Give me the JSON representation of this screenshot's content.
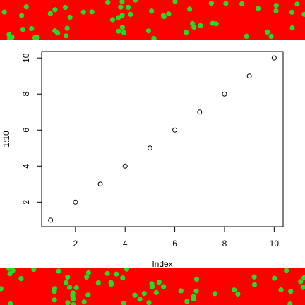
{
  "colors": {
    "band_background": "#ff0000",
    "band_dots": "#22dd22",
    "points": "#000000",
    "frame": "#000000",
    "page": "#ffffff"
  },
  "chart_data": {
    "type": "scatter",
    "title": "",
    "xlabel": "Index",
    "ylabel": "1:10",
    "x": [
      1,
      2,
      3,
      4,
      5,
      6,
      7,
      8,
      9,
      10
    ],
    "y": [
      1,
      2,
      3,
      4,
      5,
      6,
      7,
      8,
      9,
      10
    ],
    "xlim": [
      0.64,
      10.36
    ],
    "ylim": [
      0.64,
      10.36
    ],
    "xticks": [
      "2",
      "4",
      "6",
      "8",
      "10"
    ],
    "yticks": [
      "2",
      "4",
      "6",
      "8",
      "10"
    ],
    "marker": "open-circle",
    "grid": false,
    "legend": "none"
  }
}
